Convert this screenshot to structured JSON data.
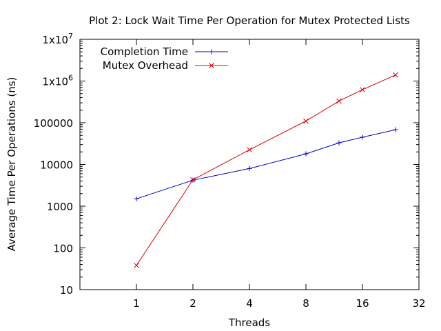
{
  "chart_data": {
    "type": "line",
    "title": "Plot 2: Lock Wait Time Per Operation for Mutex Protected Lists",
    "xlabel": "Threads",
    "ylabel": "Average Time Per Operations (ns)",
    "xscale": "log2",
    "yscale": "log10",
    "xlim": [
      0.5,
      32
    ],
    "ylim": [
      10,
      10000000
    ],
    "x_ticks": [
      {
        "value": 1,
        "label": "1"
      },
      {
        "value": 2,
        "label": "2"
      },
      {
        "value": 4,
        "label": "4"
      },
      {
        "value": 8,
        "label": "8"
      },
      {
        "value": 16,
        "label": "16"
      },
      {
        "value": 32,
        "label": "32"
      }
    ],
    "y_ticks": [
      {
        "value": 10,
        "label": "10"
      },
      {
        "value": 100,
        "label": "100"
      },
      {
        "value": 1000,
        "label": "1000"
      },
      {
        "value": 10000,
        "label": "10000"
      },
      {
        "value": 100000,
        "label": "100000"
      },
      {
        "value": 1000000,
        "label": "1x10",
        "sup": "6"
      },
      {
        "value": 10000000,
        "label": "1x10",
        "sup": "7"
      }
    ],
    "grid": false,
    "legend": "top-left",
    "series": [
      {
        "name": "Completion Time",
        "color": "#0000cc",
        "marker": "plus",
        "points": [
          {
            "x": 1,
            "y": 1500
          },
          {
            "x": 2,
            "y": 4200
          },
          {
            "x": 4,
            "y": 8000
          },
          {
            "x": 8,
            "y": 18000
          },
          {
            "x": 12,
            "y": 33000
          },
          {
            "x": 16,
            "y": 45000
          },
          {
            "x": 24,
            "y": 68000
          }
        ]
      },
      {
        "name": "Mutex Overhead",
        "color": "#dd0000",
        "marker": "cross",
        "points": [
          {
            "x": 1,
            "y": 38
          },
          {
            "x": 2,
            "y": 4300
          },
          {
            "x": 4,
            "y": 22500
          },
          {
            "x": 8,
            "y": 110000
          },
          {
            "x": 12,
            "y": 330000
          },
          {
            "x": 16,
            "y": 620000
          },
          {
            "x": 24,
            "y": 1400000
          }
        ]
      }
    ]
  }
}
